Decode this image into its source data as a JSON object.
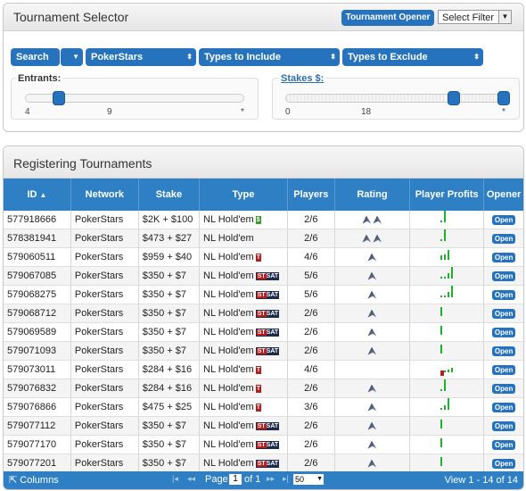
{
  "selector": {
    "title": "Tournament Selector",
    "opener_button": "Tournament Opener",
    "filter_select": "Select Filter",
    "search_button": "Search",
    "network_select": "PokerStars",
    "types_include": "Types to Include",
    "types_exclude": "Types to Exclude",
    "entrants": {
      "label": "Entrants:",
      "ticks": [
        "4",
        "9",
        "*"
      ],
      "range": [
        "4",
        "9"
      ]
    },
    "stakes": {
      "label": "Stakes $:",
      "ticks": [
        "0",
        "18",
        "*"
      ],
      "range": [
        "18",
        "*"
      ]
    }
  },
  "registering": {
    "title": "Registering Tournaments",
    "columns": [
      "ID",
      "Network",
      "Stake",
      "Type",
      "Players",
      "Rating",
      "Player Profits",
      "Opener"
    ],
    "sort_icon": "sort-up-icon",
    "rows": [
      {
        "id": "577918666",
        "network": "PokerStars",
        "stake": "$2K + $100",
        "type": "NL Hold'em",
        "badge": "green",
        "players": "2/6",
        "rating": 2,
        "profit": [
          1,
          8
        ],
        "open": "Open"
      },
      {
        "id": "578381941",
        "network": "PokerStars",
        "stake": "$473 + $27",
        "type": "NL Hold'em",
        "badge": "",
        "players": "2/6",
        "rating": 2,
        "profit": [
          1,
          8
        ],
        "open": "Open"
      },
      {
        "id": "579060511",
        "network": "PokerStars",
        "stake": "$959 + $40",
        "type": "NL Hold'em",
        "badge": "red",
        "players": "4/6",
        "rating": 1,
        "profit": [
          3,
          4,
          7
        ],
        "open": "Open"
      },
      {
        "id": "579067085",
        "network": "PokerStars",
        "stake": "$350 + $7",
        "type": "NL Hold'em",
        "badge": "stsat",
        "players": "5/6",
        "rating": 1,
        "profit": [
          1,
          1,
          4,
          8
        ],
        "open": "Open"
      },
      {
        "id": "579068275",
        "network": "PokerStars",
        "stake": "$350 + $7",
        "type": "NL Hold'em",
        "badge": "stsat",
        "players": "5/6",
        "rating": 1,
        "profit": [
          1,
          1,
          4,
          8
        ],
        "open": "Open"
      },
      {
        "id": "579068712",
        "network": "PokerStars",
        "stake": "$350 + $7",
        "type": "NL Hold'em",
        "badge": "stsat",
        "players": "2/6",
        "rating": 1,
        "profit": [
          6
        ],
        "open": "Open"
      },
      {
        "id": "579069589",
        "network": "PokerStars",
        "stake": "$350 + $7",
        "type": "NL Hold'em",
        "badge": "stsat",
        "players": "2/6",
        "rating": 1,
        "profit": [
          6
        ],
        "open": "Open"
      },
      {
        "id": "579071093",
        "network": "PokerStars",
        "stake": "$350 + $7",
        "type": "NL Hold'em",
        "badge": "stsat",
        "players": "2/6",
        "rating": 1,
        "profit": [
          6
        ],
        "open": "Open"
      },
      {
        "id": "579073011",
        "network": "PokerStars",
        "stake": "$284 + $16",
        "type": "NL Hold'em",
        "badge": "red",
        "players": "4/6",
        "rating": 0,
        "profit": [
          -4,
          1,
          2,
          3
        ],
        "open": "Open"
      },
      {
        "id": "579076832",
        "network": "PokerStars",
        "stake": "$284 + $16",
        "type": "NL Hold'em",
        "badge": "red",
        "players": "2/6",
        "rating": 1,
        "profit": [
          1,
          8
        ],
        "open": "Open"
      },
      {
        "id": "579076866",
        "network": "PokerStars",
        "stake": "$475 + $25",
        "type": "NL Hold'em",
        "badge": "red",
        "players": "3/6",
        "rating": 1,
        "profit": [
          1,
          3,
          8
        ],
        "open": "Open"
      },
      {
        "id": "579077112",
        "network": "PokerStars",
        "stake": "$350 + $7",
        "type": "NL Hold'em",
        "badge": "stsat",
        "players": "2/6",
        "rating": 1,
        "profit": [
          6
        ],
        "open": "Open"
      },
      {
        "id": "579077170",
        "network": "PokerStars",
        "stake": "$350 + $7",
        "type": "NL Hold'em",
        "badge": "stsat",
        "players": "2/6",
        "rating": 1,
        "profit": [
          6
        ],
        "open": "Open"
      },
      {
        "id": "579077201",
        "network": "PokerStars",
        "stake": "$350 + $7",
        "type": "NL Hold'em",
        "badge": "stsat",
        "players": "2/6",
        "rating": 1,
        "profit": [
          6
        ],
        "open": "Open"
      }
    ],
    "badge_text": {
      "green": "$",
      "red": "T",
      "st": "ST",
      "sat": "SAT"
    },
    "footer": {
      "columns_label": "Columns",
      "page_label": "Page",
      "page_value": "1",
      "of_label": "of 1",
      "page_size": "50",
      "view_label": "View 1 - 14 of 14"
    }
  },
  "colors": {
    "accent": "#2672bd",
    "header": "#2f7fc4",
    "profit": "#1db22d",
    "loss": "#c11c1c"
  }
}
